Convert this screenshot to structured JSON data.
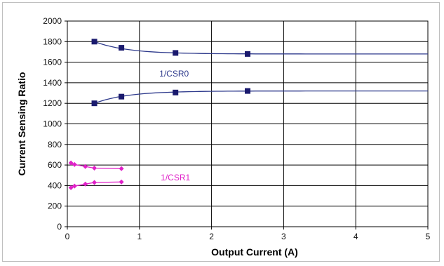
{
  "chart_data": {
    "type": "line",
    "xlabel": "Output Current (A)",
    "ylabel": "Current Sensing Ratio",
    "xlim": [
      0,
      5
    ],
    "ylim": [
      0,
      2000
    ],
    "x_ticks": [
      "0",
      "1",
      "2",
      "3",
      "4",
      "5"
    ],
    "y_ticks": [
      "0",
      "200",
      "400",
      "600",
      "800",
      "1000",
      "1200",
      "1400",
      "1600",
      "1800",
      "2000"
    ],
    "grid": true,
    "series": [
      {
        "name": "1/CSR0",
        "color": "#2e3a8c",
        "marker": "square",
        "x": [
          0.375,
          0.75,
          1.5,
          2.5
        ],
        "y": [
          1800,
          1740,
          1690,
          1680
        ],
        "group": "csr0"
      },
      {
        "name": "",
        "color": "#2e3a8c",
        "marker": "square",
        "x": [
          0.375,
          0.75,
          1.5,
          2.5
        ],
        "y": [
          1200,
          1265,
          1305,
          1320
        ],
        "group": "csr0"
      },
      {
        "name": "1/CSR1",
        "color": "#e020c8",
        "marker": "diamond",
        "x": [
          0.05,
          0.1,
          0.25,
          0.375,
          0.75
        ],
        "y": [
          620,
          605,
          585,
          570,
          565
        ],
        "group": "csr1"
      },
      {
        "name": "",
        "color": "#e020c8",
        "marker": "diamond",
        "x": [
          0.05,
          0.1,
          0.25,
          0.375,
          0.75
        ],
        "y": [
          380,
          395,
          415,
          430,
          435
        ],
        "group": "csr1"
      }
    ],
    "annotations": [
      "1/CSR0",
      "1/CSR1"
    ]
  }
}
